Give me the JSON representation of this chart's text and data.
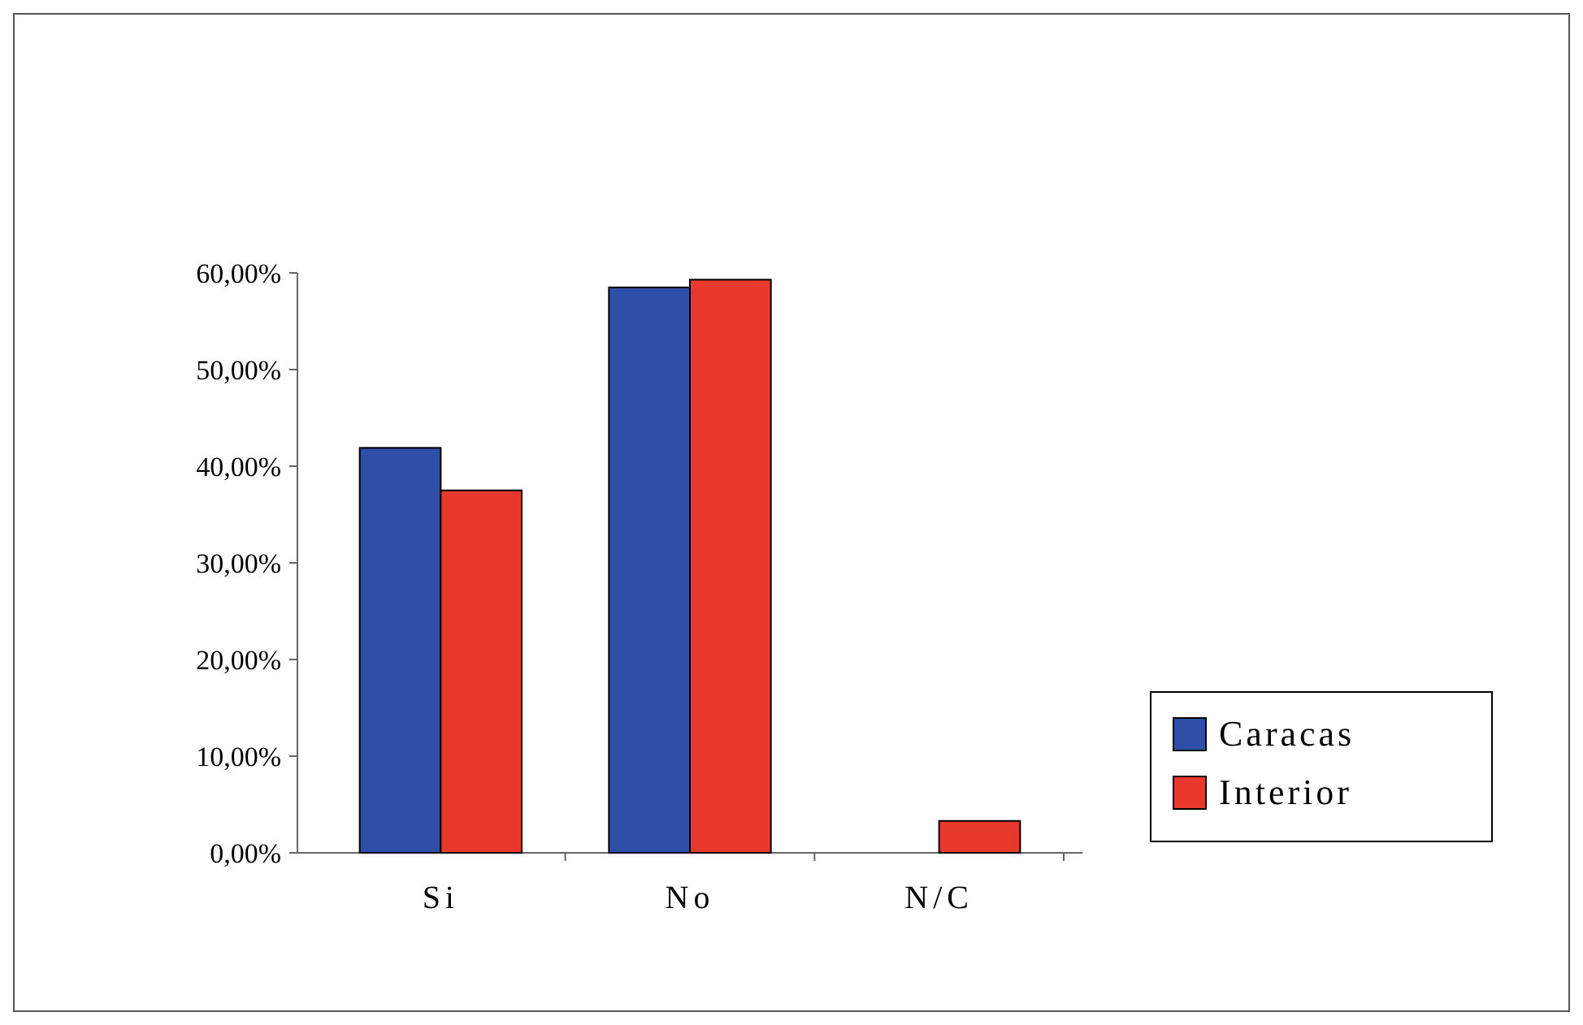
{
  "chart_data": {
    "type": "bar",
    "categories": [
      "Si",
      "No",
      "N/C"
    ],
    "series": [
      {
        "name": "Caracas",
        "color": "#2e4ea8",
        "values": [
          41.9,
          58.5,
          0
        ]
      },
      {
        "name": "Interior",
        "color": "#e8392c",
        "values": [
          37.5,
          59.3,
          3.3
        ]
      }
    ],
    "ylim": [
      0,
      60
    ],
    "yticks": [
      {
        "value": 0,
        "label": "0,00%"
      },
      {
        "value": 10,
        "label": "10,00%"
      },
      {
        "value": 20,
        "label": "20,00%"
      },
      {
        "value": 30,
        "label": "30,00%"
      },
      {
        "value": 40,
        "label": "40,00%"
      },
      {
        "value": 50,
        "label": "50,00%"
      },
      {
        "value": 60,
        "label": "60,00%"
      }
    ],
    "legend": "right",
    "grid": false
  }
}
